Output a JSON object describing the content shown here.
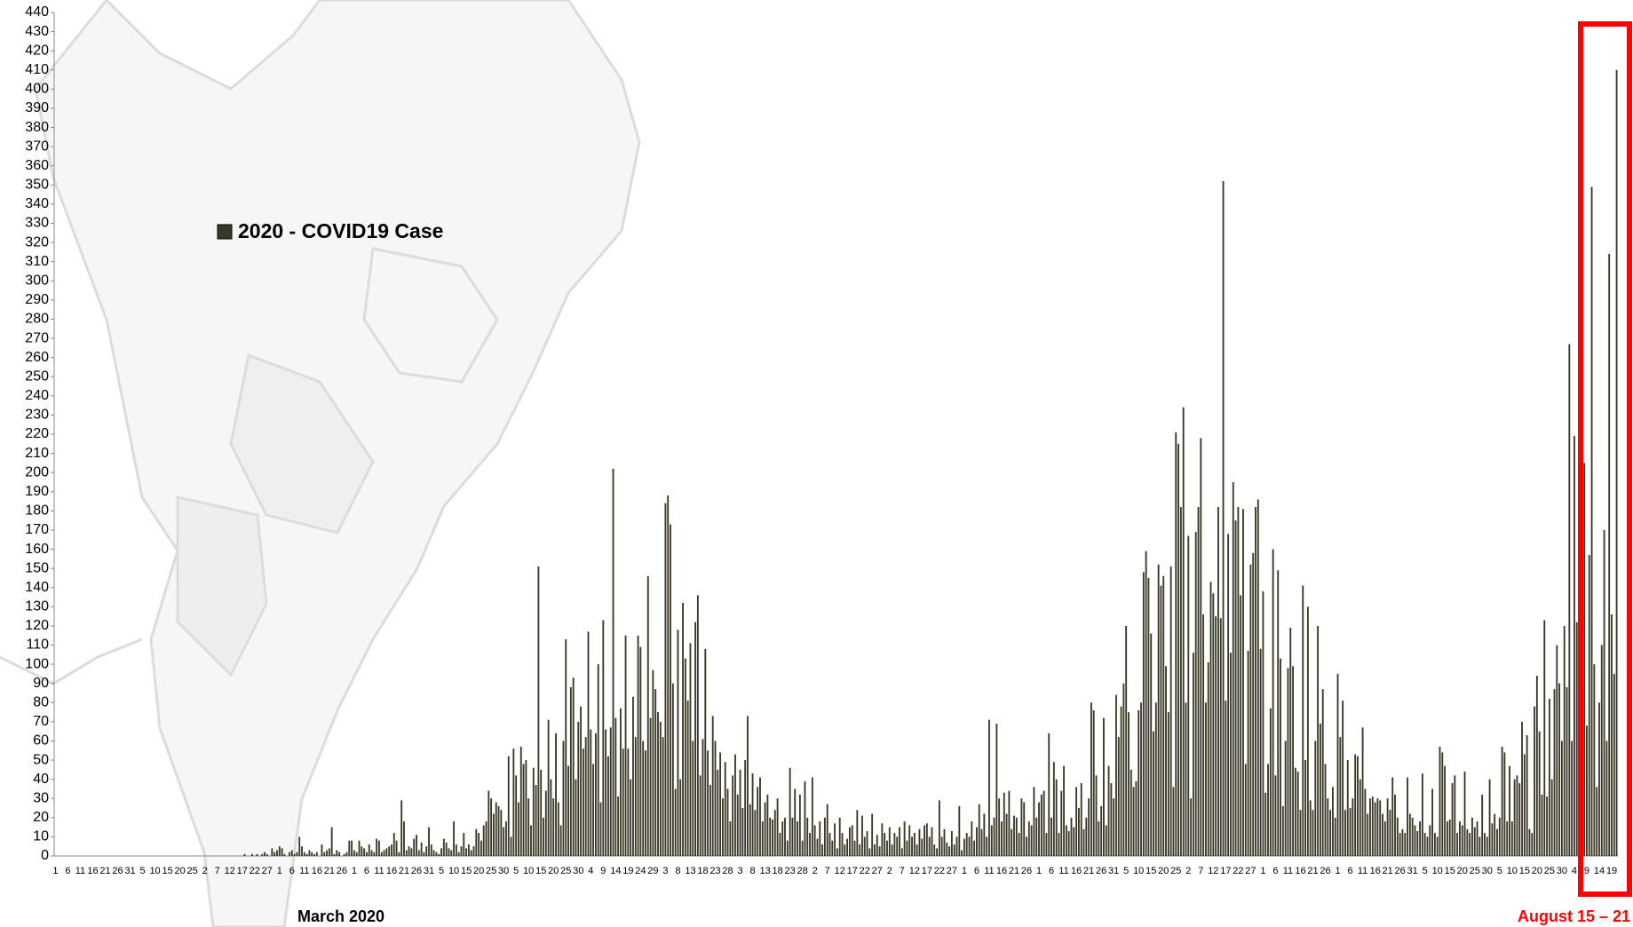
{
  "chart_data": {
    "type": "bar",
    "categories": [
      "1",
      null,
      null,
      null,
      null,
      "6",
      null,
      null,
      null,
      null,
      "11",
      null,
      null,
      null,
      null,
      "16",
      null,
      null,
      null,
      null,
      "21",
      null,
      null,
      null,
      null,
      "26",
      null,
      null,
      null,
      null,
      "31",
      null,
      null,
      null,
      null,
      "5",
      null,
      null,
      null,
      null,
      "10",
      null,
      null,
      null,
      null,
      "15",
      null,
      null,
      null,
      null,
      "20",
      null,
      null,
      null,
      null,
      "25",
      null,
      null,
      null,
      null,
      "2",
      null,
      null,
      null,
      null,
      "7",
      null,
      null,
      null,
      null,
      "12",
      null,
      null,
      null,
      null,
      "17",
      null,
      null,
      null,
      null,
      "22",
      null,
      null,
      null,
      null,
      "27",
      null,
      null,
      null,
      null,
      "1",
      null,
      null,
      null,
      null,
      "6",
      null,
      null,
      null,
      null,
      "11",
      null,
      null,
      null,
      null,
      "16",
      null,
      null,
      null,
      null,
      "21",
      null,
      null,
      null,
      null,
      "26",
      null,
      null,
      null,
      null,
      "1",
      null,
      null,
      null,
      null,
      "6",
      null,
      null,
      null,
      null,
      "11",
      null,
      null,
      null,
      null,
      "16",
      null,
      null,
      null,
      null,
      "21",
      null,
      null,
      null,
      null,
      "26",
      null,
      null,
      null,
      null,
      "31",
      null,
      null,
      null,
      null,
      "5",
      null,
      null,
      null,
      null,
      "10",
      null,
      null,
      null,
      null,
      "15",
      null,
      null,
      null,
      null,
      "20",
      null,
      null,
      null,
      null,
      "25",
      null,
      null,
      null,
      null,
      "30",
      null,
      null,
      null,
      null,
      "5",
      null,
      null,
      null,
      null,
      "10",
      null,
      null,
      null,
      null,
      "15",
      null,
      null,
      null,
      null,
      "20",
      null,
      null,
      null,
      null,
      "25",
      null,
      null,
      null,
      null,
      "30",
      null,
      null,
      null,
      null,
      "4",
      null,
      null,
      null,
      null,
      "9",
      null,
      null,
      null,
      null,
      "14",
      null,
      null,
      null,
      null,
      "19",
      null,
      null,
      null,
      null,
      "24",
      null,
      null,
      null,
      null,
      "29",
      null,
      null,
      null,
      null,
      "3",
      null,
      null,
      null,
      null,
      "8",
      null,
      null,
      null,
      null,
      "13",
      null,
      null,
      null,
      null,
      "18",
      null,
      null,
      null,
      null,
      "23",
      null,
      null,
      null,
      null,
      "28",
      null,
      null,
      null,
      null,
      "3",
      null,
      null,
      null,
      null,
      "8",
      null,
      null,
      null,
      null,
      "13",
      null,
      null,
      null,
      null,
      "18",
      null,
      null,
      null,
      null,
      "23",
      null,
      null,
      null,
      null,
      "28",
      null,
      null,
      null,
      null,
      "2",
      null,
      null,
      null,
      null,
      "7",
      null,
      null,
      null,
      null,
      "12",
      null,
      null,
      null,
      null,
      "17",
      null,
      null,
      null,
      null,
      "22",
      null,
      null,
      null,
      null,
      "27",
      null,
      null,
      null,
      null,
      "2",
      null,
      null,
      null,
      null,
      "7",
      null,
      null,
      null,
      null,
      "12",
      null,
      null,
      null,
      null,
      "17",
      null,
      null,
      null,
      null,
      "22",
      null,
      null,
      null,
      null,
      "27",
      null,
      null,
      null,
      null,
      "1",
      null,
      null,
      null,
      null,
      "6",
      null,
      null,
      null,
      null,
      "11",
      null,
      null,
      null,
      null,
      "16",
      null,
      null,
      null,
      null,
      "21",
      null,
      null,
      null,
      null,
      "26",
      null,
      null,
      null,
      null,
      "1",
      null,
      null,
      null,
      null,
      "6",
      null,
      null,
      null,
      null,
      "11",
      null,
      null,
      null,
      null,
      "16",
      null,
      null,
      null,
      null,
      "21",
      null,
      null,
      null,
      null,
      "26",
      null,
      null,
      null,
      null,
      "31",
      null,
      null,
      null,
      null,
      "5",
      null,
      null,
      null,
      null,
      "10",
      null,
      null,
      null,
      null,
      "15",
      null,
      null,
      null,
      null,
      "20",
      null,
      null,
      null,
      null,
      "25",
      null,
      null,
      null,
      null,
      "2",
      null,
      null,
      null,
      null,
      "7",
      null,
      null,
      null,
      null,
      "12",
      null,
      null,
      null,
      null,
      "17",
      null,
      null,
      null,
      null,
      "22",
      null,
      null,
      null,
      null,
      "27",
      null,
      null,
      null,
      null,
      "1",
      null,
      null,
      null,
      null,
      "6",
      null,
      null,
      null,
      null,
      "11",
      null,
      null,
      null,
      null,
      "16",
      null,
      null,
      null,
      null,
      "21",
      null,
      null,
      null,
      null,
      "26",
      null,
      null,
      null,
      null,
      "1",
      null,
      null,
      null,
      null,
      "6",
      null,
      null,
      null,
      null,
      "11",
      null,
      null,
      null,
      null,
      "16",
      null,
      null,
      null,
      null,
      "21",
      null,
      null,
      null,
      null,
      "26",
      null,
      null,
      null,
      null,
      "31",
      null,
      null,
      null,
      null,
      "5",
      null,
      null,
      null,
      null,
      "10",
      null,
      null,
      null,
      null,
      "15",
      null,
      null,
      null,
      null,
      "20",
      null,
      null,
      null,
      null,
      "25",
      null,
      null,
      null,
      null,
      "30",
      null,
      null,
      null,
      null,
      "5",
      null,
      null,
      null,
      null,
      "10",
      null,
      null,
      null,
      null,
      "15",
      null,
      null,
      null,
      null,
      "20",
      null,
      null,
      null,
      null,
      "25",
      null,
      null,
      null,
      null,
      "30",
      null,
      null,
      null,
      null,
      "4",
      null,
      null,
      null,
      null,
      "9",
      null,
      null,
      null,
      null,
      "14",
      null,
      null,
      null,
      null,
      "19",
      null,
      null
    ],
    "series": [
      {
        "name": "2020 - COVID19 Case",
        "color": "#3a3726",
        "values": [
          0,
          0,
          0,
          0,
          0,
          0,
          0,
          0,
          0,
          0,
          0,
          0,
          0,
          0,
          0,
          0,
          0,
          0,
          0,
          0,
          0,
          0,
          0,
          0,
          0,
          0,
          0,
          0,
          0,
          0,
          0,
          0,
          0,
          0,
          0,
          0,
          0,
          0,
          0,
          0,
          0,
          0,
          0,
          0,
          0,
          0,
          0,
          0,
          0,
          0,
          0,
          0,
          0,
          0,
          0,
          0,
          0,
          0,
          0,
          0,
          0,
          0,
          0,
          0,
          0,
          0,
          0,
          0,
          0,
          0,
          0,
          0,
          0,
          0,
          0,
          0,
          1,
          0,
          0,
          1,
          0,
          1,
          0,
          1,
          2,
          1,
          0,
          4,
          2,
          3,
          5,
          4,
          1,
          0,
          2,
          3,
          1,
          2,
          10,
          5,
          2,
          1,
          3,
          2,
          1,
          2,
          0,
          6,
          2,
          3,
          4,
          15,
          1,
          3,
          2,
          0,
          1,
          2,
          8,
          8,
          3,
          2,
          8,
          5,
          4,
          2,
          6,
          3,
          2,
          9,
          8,
          2,
          3,
          4,
          5,
          6,
          12,
          8,
          2,
          29,
          18,
          3,
          5,
          4,
          9,
          11,
          3,
          7,
          2,
          5,
          15,
          6,
          3,
          2,
          1,
          4,
          9,
          7,
          4,
          3,
          18,
          6,
          2,
          5,
          12,
          4,
          6,
          3,
          5,
          14,
          12,
          8,
          16,
          18,
          34,
          30,
          22,
          28,
          26,
          24,
          15,
          18,
          52,
          10,
          56,
          42,
          28,
          57,
          48,
          50,
          30,
          16,
          46,
          37,
          151,
          45,
          20,
          34,
          71,
          40,
          30,
          64,
          28,
          16,
          60,
          113,
          47,
          88,
          93,
          40,
          70,
          78,
          56,
          62,
          117,
          66,
          48,
          64,
          100,
          28,
          123,
          66,
          52,
          67,
          202,
          72,
          31,
          77,
          56,
          115,
          56,
          40,
          83,
          62,
          115,
          109,
          60,
          55,
          146,
          72,
          97,
          87,
          75,
          70,
          62,
          184,
          188,
          173,
          90,
          35,
          118,
          40,
          132,
          103,
          81,
          111,
          60,
          122,
          136,
          42,
          61,
          108,
          55,
          37,
          73,
          60,
          45,
          54,
          30,
          49,
          35,
          18,
          42,
          53,
          32,
          45,
          25,
          50,
          73,
          27,
          43,
          24,
          36,
          41,
          18,
          28,
          32,
          20,
          19,
          24,
          30,
          12,
          18,
          20,
          8,
          46,
          20,
          35,
          18,
          32,
          8,
          39,
          20,
          12,
          41,
          16,
          9,
          18,
          6,
          20,
          27,
          12,
          8,
          17,
          4,
          20,
          12,
          6,
          9,
          15,
          16,
          8,
          24,
          6,
          21,
          10,
          13,
          4,
          22,
          6,
          11,
          5,
          17,
          12,
          8,
          15,
          6,
          12,
          10,
          15,
          4,
          18,
          8,
          16,
          10,
          12,
          6,
          14,
          9,
          16,
          17,
          10,
          15,
          6,
          4,
          29,
          10,
          14,
          7,
          5,
          13,
          6,
          10,
          26,
          3,
          9,
          12,
          10,
          18,
          8,
          15,
          27,
          14,
          22,
          10,
          71,
          16,
          20,
          69,
          30,
          18,
          33,
          22,
          34,
          14,
          21,
          20,
          12,
          30,
          28,
          10,
          18,
          16,
          36,
          20,
          28,
          32,
          34,
          12,
          64,
          20,
          49,
          40,
          12,
          34,
          47,
          16,
          13,
          20,
          15,
          36,
          25,
          38,
          14,
          20,
          30,
          80,
          76,
          42,
          18,
          26,
          72,
          16,
          47,
          38,
          30,
          84,
          62,
          78,
          90,
          120,
          75,
          45,
          36,
          39,
          76,
          80,
          148,
          159,
          145,
          116,
          65,
          80,
          152,
          141,
          146,
          99,
          75,
          151,
          36,
          221,
          215,
          182,
          234,
          80,
          167,
          30,
          106,
          169,
          182,
          218,
          126,
          80,
          101,
          143,
          137,
          125,
          182,
          124,
          352,
          81,
          168,
          106,
          195,
          175,
          182,
          136,
          181,
          48,
          107,
          152,
          158,
          182,
          186,
          108,
          138,
          33,
          48,
          77,
          160,
          42,
          149,
          103,
          26,
          60,
          98,
          119,
          99,
          46,
          44,
          24,
          141,
          50,
          130,
          29,
          24,
          60,
          120,
          69,
          87,
          48,
          30,
          24,
          36,
          20,
          95,
          62,
          81,
          24,
          50,
          25,
          30,
          53,
          52,
          40,
          67,
          35,
          22,
          30,
          31,
          28,
          30,
          29,
          22,
          18,
          30,
          24,
          41,
          32,
          20,
          12,
          14,
          12,
          41,
          22,
          20,
          16,
          13,
          18,
          43,
          12,
          10,
          16,
          35,
          12,
          10,
          57,
          54,
          47,
          18,
          19,
          38,
          42,
          12,
          18,
          16,
          44,
          14,
          12,
          20,
          15,
          18,
          10,
          32,
          12,
          10,
          40,
          17,
          22,
          14,
          20,
          57,
          54,
          18,
          47,
          18,
          40,
          42,
          38,
          70,
          53,
          63,
          14,
          12,
          78,
          94,
          65,
          32,
          123,
          31,
          82,
          40,
          87,
          110,
          90,
          60,
          120,
          88,
          267,
          60,
          219,
          122,
          232,
          90,
          205,
          68,
          157,
          349,
          100,
          36,
          80,
          110,
          170,
          60,
          314,
          126,
          95,
          410
        ]
      }
    ],
    "ylim": [
      0,
      440
    ],
    "yticks": [
      0,
      10,
      20,
      30,
      40,
      50,
      60,
      70,
      80,
      90,
      100,
      110,
      120,
      130,
      140,
      150,
      160,
      170,
      180,
      190,
      200,
      210,
      220,
      230,
      240,
      250,
      260,
      270,
      280,
      290,
      300,
      310,
      320,
      330,
      340,
      350,
      360,
      370,
      380,
      390,
      400,
      410,
      420,
      430,
      440
    ],
    "annotations": [
      "March 2020",
      "August 15 – 21"
    ]
  }
}
